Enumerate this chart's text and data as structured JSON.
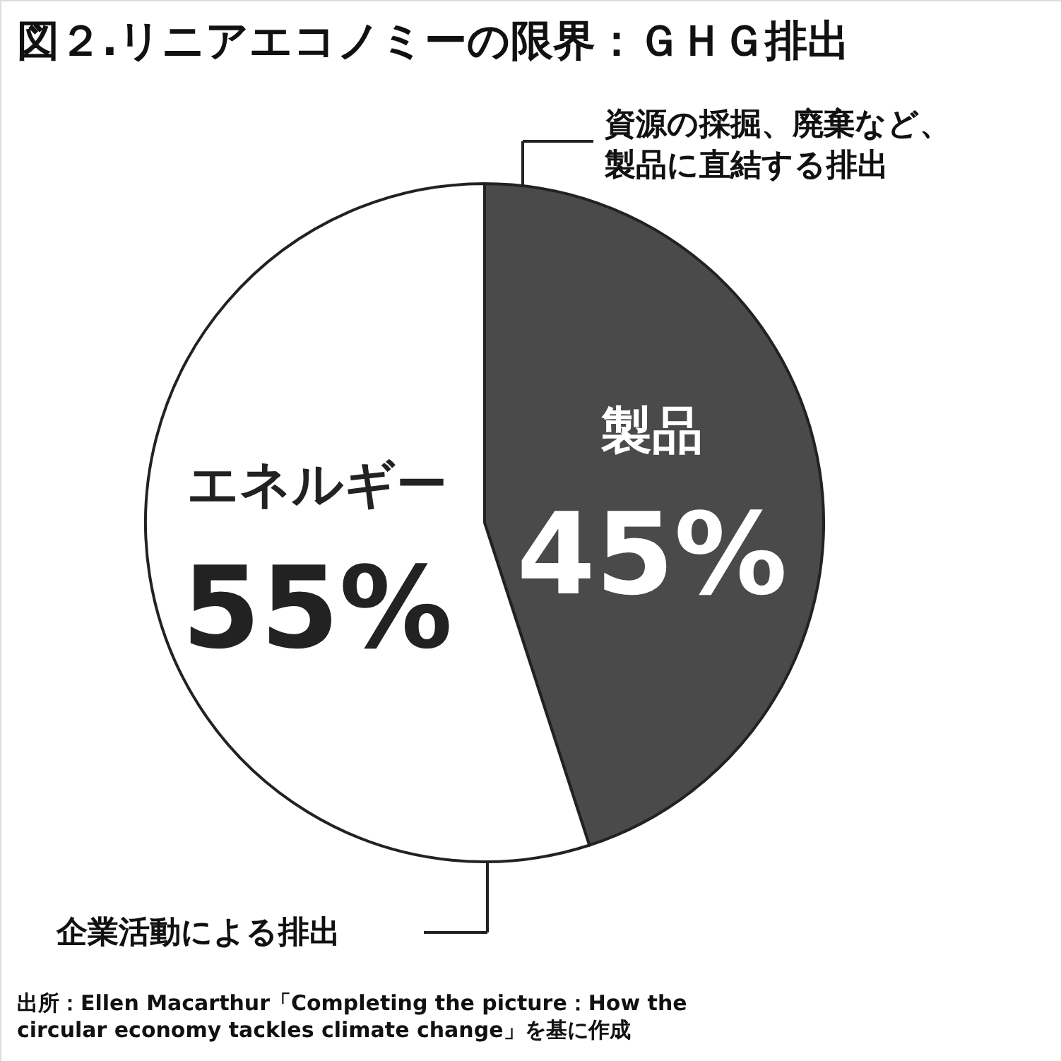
{
  "chart_data": {
    "type": "pie",
    "title": "図２.リニアエコノミーの限界：ＧＨＧ排出",
    "categories": [
      "製品",
      "エネルギー"
    ],
    "values": [
      45,
      55
    ],
    "colors": [
      "#4a4a4a",
      "#ffffff"
    ],
    "value_labels": [
      "45%",
      "55%"
    ],
    "annotations": [
      "資源の採掘、廃棄など、",
      "製品に直結する排出",
      "企業活動による排出",
      "出所：Ellen Macarthur「Completing the picture：How the\ncircular economy tackles climate change」を基に作成"
    ]
  }
}
